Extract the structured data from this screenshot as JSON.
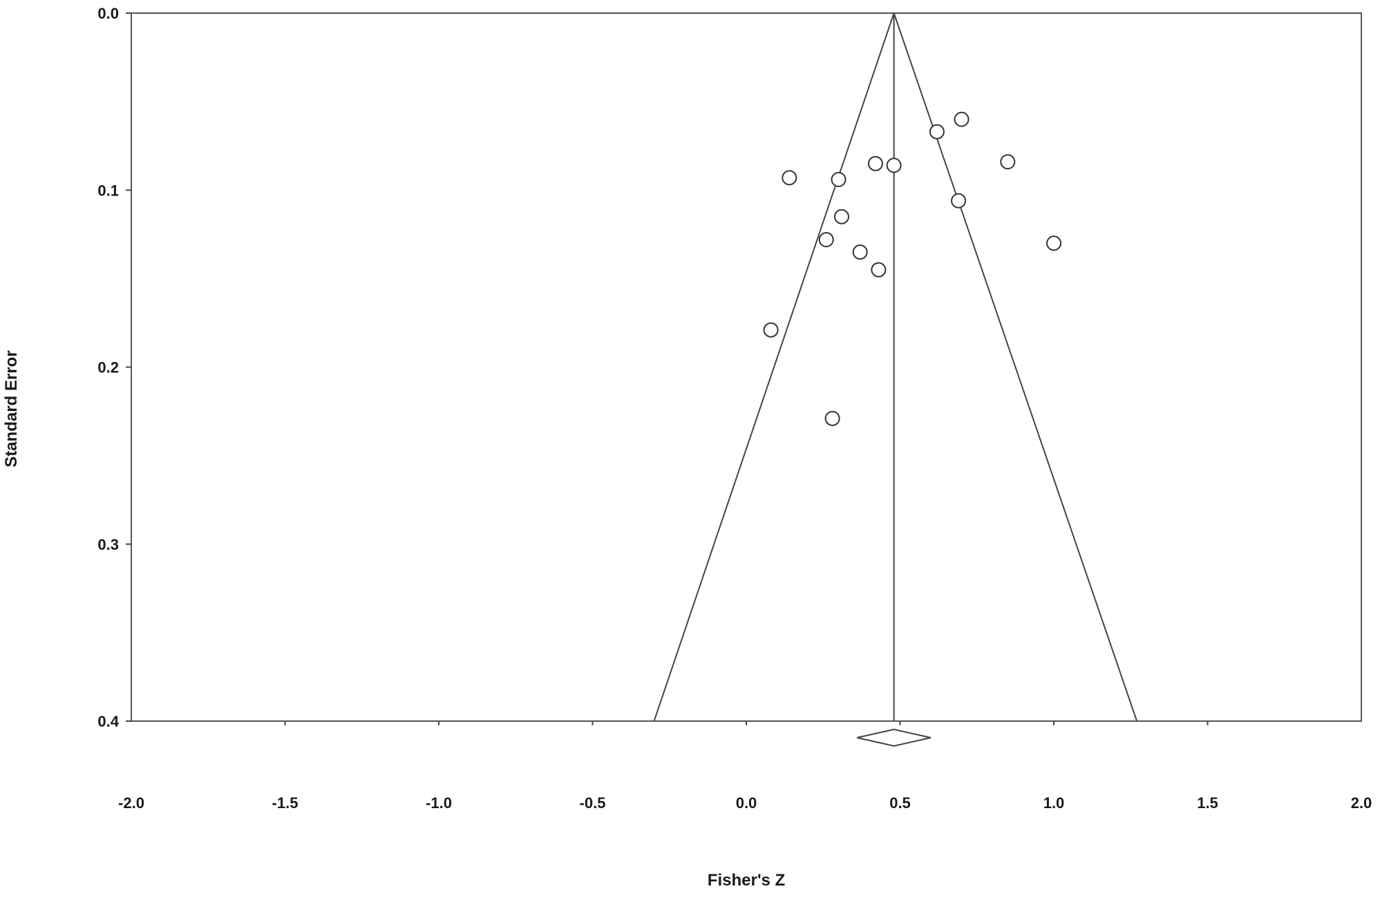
{
  "chart_data": {
    "type": "scatter",
    "title": "",
    "xlabel": "Fisher's Z",
    "ylabel": "Standard Error",
    "xlim": [
      -2.0,
      2.0
    ],
    "ylim": [
      0.0,
      0.4
    ],
    "y_inverted": true,
    "grid": false,
    "x_ticks": [
      "-2.0",
      "-1.5",
      "-1.0",
      "-0.5",
      "0.0",
      "0.5",
      "1.0",
      "1.5",
      "2.0"
    ],
    "y_ticks": [
      "0.0",
      "0.1",
      "0.2",
      "0.3",
      "0.4"
    ],
    "pooled_effect": 0.48,
    "pooled_ci": [
      0.36,
      0.6
    ],
    "funnel_limits_at_se_0_4": [
      -0.3,
      1.27
    ],
    "points": [
      {
        "x": 0.7,
        "y": 0.06
      },
      {
        "x": 0.62,
        "y": 0.067
      },
      {
        "x": 0.85,
        "y": 0.084
      },
      {
        "x": 0.42,
        "y": 0.085
      },
      {
        "x": 0.48,
        "y": 0.086
      },
      {
        "x": 0.14,
        "y": 0.093
      },
      {
        "x": 0.3,
        "y": 0.094
      },
      {
        "x": 0.69,
        "y": 0.106
      },
      {
        "x": 0.31,
        "y": 0.115
      },
      {
        "x": 0.26,
        "y": 0.128
      },
      {
        "x": 1.0,
        "y": 0.13
      },
      {
        "x": 0.37,
        "y": 0.135
      },
      {
        "x": 0.43,
        "y": 0.145
      },
      {
        "x": 0.08,
        "y": 0.179
      },
      {
        "x": 0.28,
        "y": 0.229
      }
    ]
  }
}
